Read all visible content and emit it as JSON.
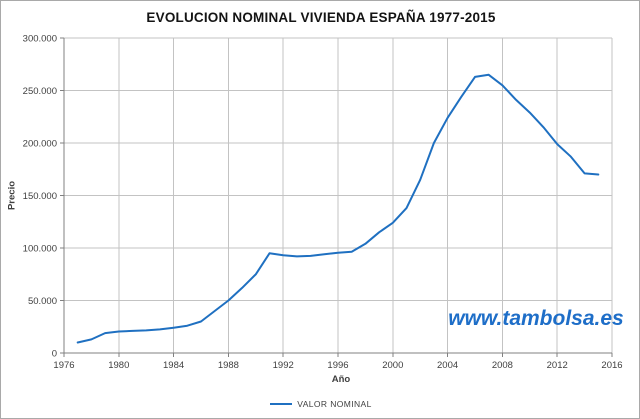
{
  "title": "EVOLUCION NOMINAL VIVIENDA ESPAÑA 1977-2015",
  "watermark": "www.tambolsa.es",
  "colors": {
    "series": "#1f70c1",
    "watermark": "#1e6ec8",
    "grid": "#c3c3c3",
    "axis": "#808080",
    "tick_label": "#3f3f3f",
    "title": "#141414",
    "frame_border": "#a9a9a9"
  },
  "chart_data": {
    "type": "line",
    "title": "EVOLUCION NOMINAL VIVIENDA ESPAÑA 1977-2015",
    "xlabel": "Año",
    "ylabel": "Precio",
    "grid": true,
    "legend_position": "bottom",
    "xlim": [
      1976,
      2016
    ],
    "ylim": [
      0,
      300000
    ],
    "x_ticks": [
      1976,
      1980,
      1984,
      1988,
      1992,
      1996,
      2000,
      2004,
      2008,
      2012,
      2016
    ],
    "y_ticks": [
      0,
      50000,
      100000,
      150000,
      200000,
      250000,
      300000
    ],
    "y_tick_labels": [
      "0",
      "50.000",
      "100.000",
      "150.000",
      "200.000",
      "250.000",
      "300.000"
    ],
    "series": [
      {
        "name": "VALOR NOMINAL",
        "color": "#1f70c1",
        "x": [
          1977,
          1978,
          1979,
          1980,
          1981,
          1982,
          1983,
          1984,
          1985,
          1986,
          1987,
          1988,
          1989,
          1990,
          1991,
          1992,
          1993,
          1994,
          1995,
          1996,
          1997,
          1998,
          1999,
          2000,
          2001,
          2002,
          2003,
          2004,
          2005,
          2006,
          2007,
          2008,
          2009,
          2010,
          2011,
          2012,
          2013,
          2014,
          2015
        ],
        "values": [
          10000,
          13000,
          19000,
          20500,
          21000,
          21500,
          22500,
          24000,
          26000,
          30000,
          40000,
          50000,
          62000,
          75000,
          95000,
          93000,
          92000,
          92500,
          94000,
          95500,
          96500,
          104000,
          115000,
          124000,
          138000,
          165000,
          200000,
          224000,
          244000,
          263000,
          265000,
          255000,
          241000,
          229000,
          215000,
          199000,
          187000,
          171000,
          170000
        ]
      }
    ]
  }
}
